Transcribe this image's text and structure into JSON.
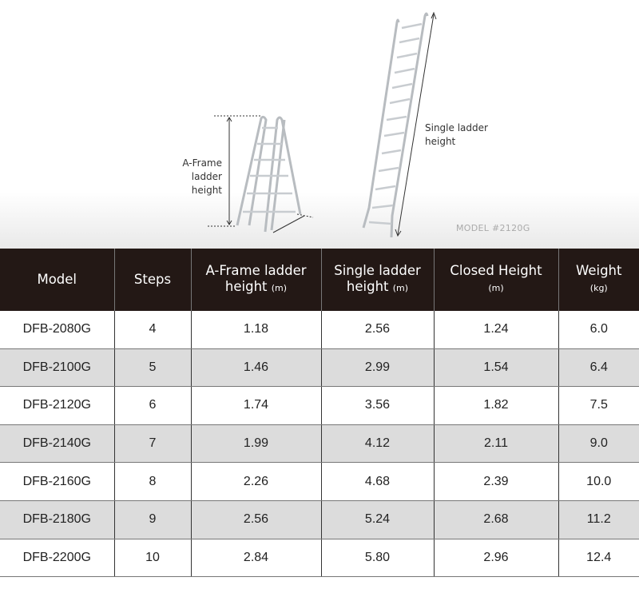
{
  "hero": {
    "aframe_label_line1": "A-Frame ladder",
    "aframe_label_line2": "height",
    "single_label_line1": "Single ladder",
    "single_label_line2": "height",
    "model_tag": "MODEL #2120G"
  },
  "table": {
    "headers": [
      {
        "main": "Model",
        "unit": ""
      },
      {
        "main": "Steps",
        "unit": ""
      },
      {
        "main": "A-Frame ladder",
        "main2": "height",
        "unit": "(m)"
      },
      {
        "main": "Single ladder",
        "main2": "height",
        "unit": "(m)"
      },
      {
        "main": "Closed Height",
        "unit": "(m)"
      },
      {
        "main": "Weight",
        "unit": "(kg)"
      }
    ],
    "rows": [
      [
        "DFB-2080G",
        "4",
        "1.18",
        "2.56",
        "1.24",
        "6.0"
      ],
      [
        "DFB-2100G",
        "5",
        "1.46",
        "2.99",
        "1.54",
        "6.4"
      ],
      [
        "DFB-2120G",
        "6",
        "1.74",
        "3.56",
        "1.82",
        "7.5"
      ],
      [
        "DFB-2140G",
        "7",
        "1.99",
        "4.12",
        "2.11",
        "9.0"
      ],
      [
        "DFB-2160G",
        "8",
        "2.26",
        "4.68",
        "2.39",
        "10.0"
      ],
      [
        "DFB-2180G",
        "9",
        "2.56",
        "5.24",
        "2.68",
        "11.2"
      ],
      [
        "DFB-2200G",
        "10",
        "2.84",
        "5.80",
        "2.96",
        "12.4"
      ]
    ]
  },
  "colors": {
    "header_bg": "#231815",
    "alt_row": "#dcdcdc"
  }
}
